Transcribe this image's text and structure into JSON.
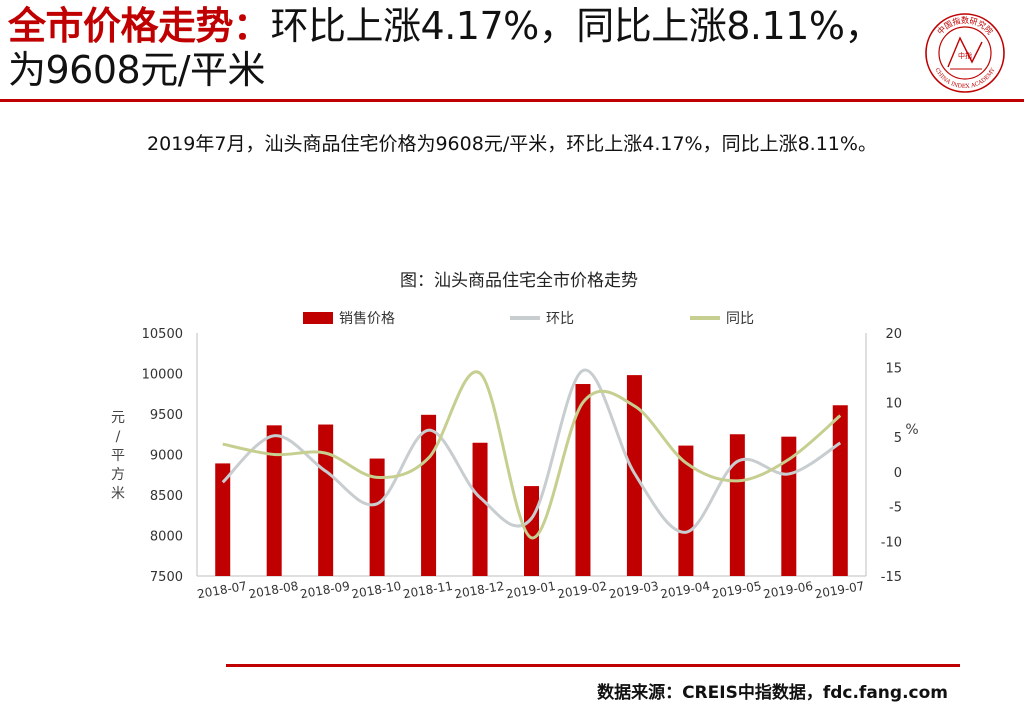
{
  "header": {
    "title_red": "全市价格走势：",
    "title_rest": "环比上涨4.17%，同比上涨8.11%，为9608元/平米"
  },
  "logo": {
    "text_top": "中国指数研究院",
    "text_bottom": "CHINA INDEX ACADEMY",
    "mark": "中指",
    "color": "#c00000"
  },
  "summary": "2019年7月，汕头商品住宅价格为9608元/平米，环比上涨4.17%，同比上涨8.11%。",
  "source": "数据来源：CREIS中指数据，fdc.fang.com",
  "colors": {
    "accent": "#c00000",
    "bar": "#c00000",
    "mom": "#c8cdd0",
    "yoy": "#c6cf8f"
  },
  "chart_data": {
    "type": "bar",
    "title": "图：汕头商品住宅全市价格走势",
    "categories": [
      "2018-07",
      "2018-08",
      "2018-09",
      "2018-10",
      "2018-11",
      "2018-12",
      "2019-01",
      "2019-02",
      "2019-03",
      "2019-04",
      "2019-05",
      "2019-06",
      "2019-07"
    ],
    "series": [
      {
        "name": "销售价格",
        "type": "bar",
        "axis": "left",
        "values": [
          8890,
          9360,
          9370,
          8950,
          9490,
          9145,
          8610,
          9870,
          9980,
          9110,
          9250,
          9220,
          9608
        ]
      },
      {
        "name": "环比",
        "type": "line",
        "axis": "right",
        "values": [
          -1.5,
          5.2,
          0.1,
          -4.6,
          6.0,
          -3.7,
          -6.7,
          14.6,
          -0.2,
          -8.7,
          1.5,
          -0.3,
          4.17
        ]
      },
      {
        "name": "同比",
        "type": "line",
        "axis": "right",
        "values": [
          4.0,
          2.5,
          2.7,
          -0.8,
          2.0,
          14.2,
          -9.5,
          10.0,
          9.5,
          1.3,
          -1.3,
          1.8,
          8.11
        ]
      }
    ],
    "ylabel": "元/平方米",
    "ylabel_right": "%",
    "ylim": [
      7500,
      10500
    ],
    "yticks": [
      7500,
      8000,
      8500,
      9000,
      9500,
      10000,
      10500
    ],
    "ylim_right": [
      -15,
      20
    ],
    "yticks_right": [
      -15,
      -10,
      -5,
      0,
      5,
      10,
      15,
      20
    ],
    "legend_position": "top",
    "grid": false
  }
}
